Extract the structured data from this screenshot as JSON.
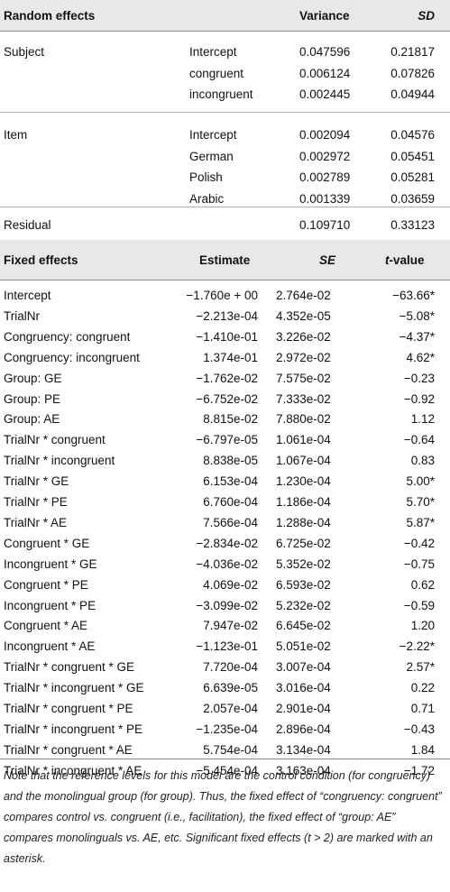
{
  "random_effects": {
    "headers": {
      "label": "Random effects",
      "variance": "Variance",
      "sd": "SD"
    },
    "groups": [
      {
        "name": "Subject",
        "rows": [
          {
            "term": "Intercept",
            "variance": "0.047596",
            "sd": "0.21817"
          },
          {
            "term": "congruent",
            "variance": "0.006124",
            "sd": "0.07826"
          },
          {
            "term": "incongruent",
            "variance": "0.002445",
            "sd": "0.04944"
          }
        ]
      },
      {
        "name": "Item",
        "rows": [
          {
            "term": "Intercept",
            "variance": "0.002094",
            "sd": "0.04576"
          },
          {
            "term": "German",
            "variance": "0.002972",
            "sd": "0.05451"
          },
          {
            "term": "Polish",
            "variance": "0.002789",
            "sd": "0.05281"
          },
          {
            "term": "Arabic",
            "variance": "0.001339",
            "sd": "0.03659"
          }
        ]
      },
      {
        "name": "Residual",
        "rows": [
          {
            "term": "",
            "variance": "0.109710",
            "sd": "0.33123"
          }
        ]
      }
    ]
  },
  "fixed_effects": {
    "headers": {
      "label": "Fixed effects",
      "estimate": "Estimate",
      "se": "SE",
      "t": "t",
      "t_suffix": "-value"
    },
    "rows": [
      {
        "term": "Intercept",
        "estimate": "−1.760e + 00",
        "se": "2.764e-02",
        "t": "−63.66*"
      },
      {
        "term": "TrialNr",
        "estimate": "−2.213e-04",
        "se": "4.352e-05",
        "t": "−5.08*"
      },
      {
        "term": "Congruency: congruent",
        "estimate": "−1.410e-01",
        "se": "3.226e-02",
        "t": "−4.37*"
      },
      {
        "term": "Congruency: incongruent",
        "estimate": "1.374e-01",
        "se": "2.972e-02",
        "t": "4.62*"
      },
      {
        "term": "Group: GE",
        "estimate": "−1.762e-02",
        "se": "7.575e-02",
        "t": "−0.23"
      },
      {
        "term": "Group: PE",
        "estimate": "−6.752e-02",
        "se": "7.333e-02",
        "t": "−0.92"
      },
      {
        "term": "Group: AE",
        "estimate": "8.815e-02",
        "se": "7.880e-02",
        "t": "1.12"
      },
      {
        "term": "TrialNr * congruent",
        "estimate": "−6.797e-05",
        "se": "1.061e-04",
        "t": "−0.64"
      },
      {
        "term": "TrialNr * incongruent",
        "estimate": "8.838e-05",
        "se": "1.067e-04",
        "t": "0.83"
      },
      {
        "term": "TrialNr * GE",
        "estimate": "6.153e-04",
        "se": "1.230e-04",
        "t": "5.00*"
      },
      {
        "term": "TrialNr * PE",
        "estimate": "6.760e-04",
        "se": "1.186e-04",
        "t": "5.70*"
      },
      {
        "term": "TrialNr * AE",
        "estimate": "7.566e-04",
        "se": "1.288e-04",
        "t": "5.87*"
      },
      {
        "term": "Congruent * GE",
        "estimate": "−2.834e-02",
        "se": "6.725e-02",
        "t": "−0.42"
      },
      {
        "term": "Incongruent * GE",
        "estimate": "−4.036e-02",
        "se": "5.352e-02",
        "t": "−0.75"
      },
      {
        "term": "Congruent * PE",
        "estimate": "4.069e-02",
        "se": "6.593e-02",
        "t": "0.62"
      },
      {
        "term": "Incongruent * PE",
        "estimate": "−3.099e-02",
        "se": "5.232e-02",
        "t": "−0.59"
      },
      {
        "term": "Congruent * AE",
        "estimate": "7.947e-02",
        "se": "6.645e-02",
        "t": "1.20"
      },
      {
        "term": "Incongruent * AE",
        "estimate": "−1.123e-01",
        "se": "5.051e-02",
        "t": "−2.22*"
      },
      {
        "term": "TrialNr * congruent * GE",
        "estimate": "7.720e-04",
        "se": "3.007e-04",
        "t": "2.57*"
      },
      {
        "term": "TrialNr * incongruent * GE",
        "estimate": "6.639e-05",
        "se": "3.016e-04",
        "t": "0.22"
      },
      {
        "term": "TrialNr * congruent * PE",
        "estimate": "2.057e-04",
        "se": "2.901e-04",
        "t": "0.71"
      },
      {
        "term": "TrialNr * incongruent * PE",
        "estimate": "−1.235e-04",
        "se": "2.896e-04",
        "t": "−0.43"
      },
      {
        "term": "TrialNr * congruent * AE",
        "estimate": "5.754e-04",
        "se": "3.134e-04",
        "t": "1.84"
      },
      {
        "term": "TrialNr * incongruent * AE",
        "estimate": "−5.454e-04",
        "se": "3.163e-04",
        "t": "−1.72"
      }
    ]
  },
  "note": "Note that the reference levels for this model are the control condition (for congruency) and the monolingual group (for group). Thus, the fixed effect of “congruency: congruent” compares control vs. congruent (i.e., facilitation), the fixed effect of “group: AE” compares monolinguals vs. AE, etc. Significant fixed effects (t > 2) are marked with an asterisk.",
  "colors": {
    "header_band": "#e8e8e8",
    "rule": "#8a8a8a"
  }
}
